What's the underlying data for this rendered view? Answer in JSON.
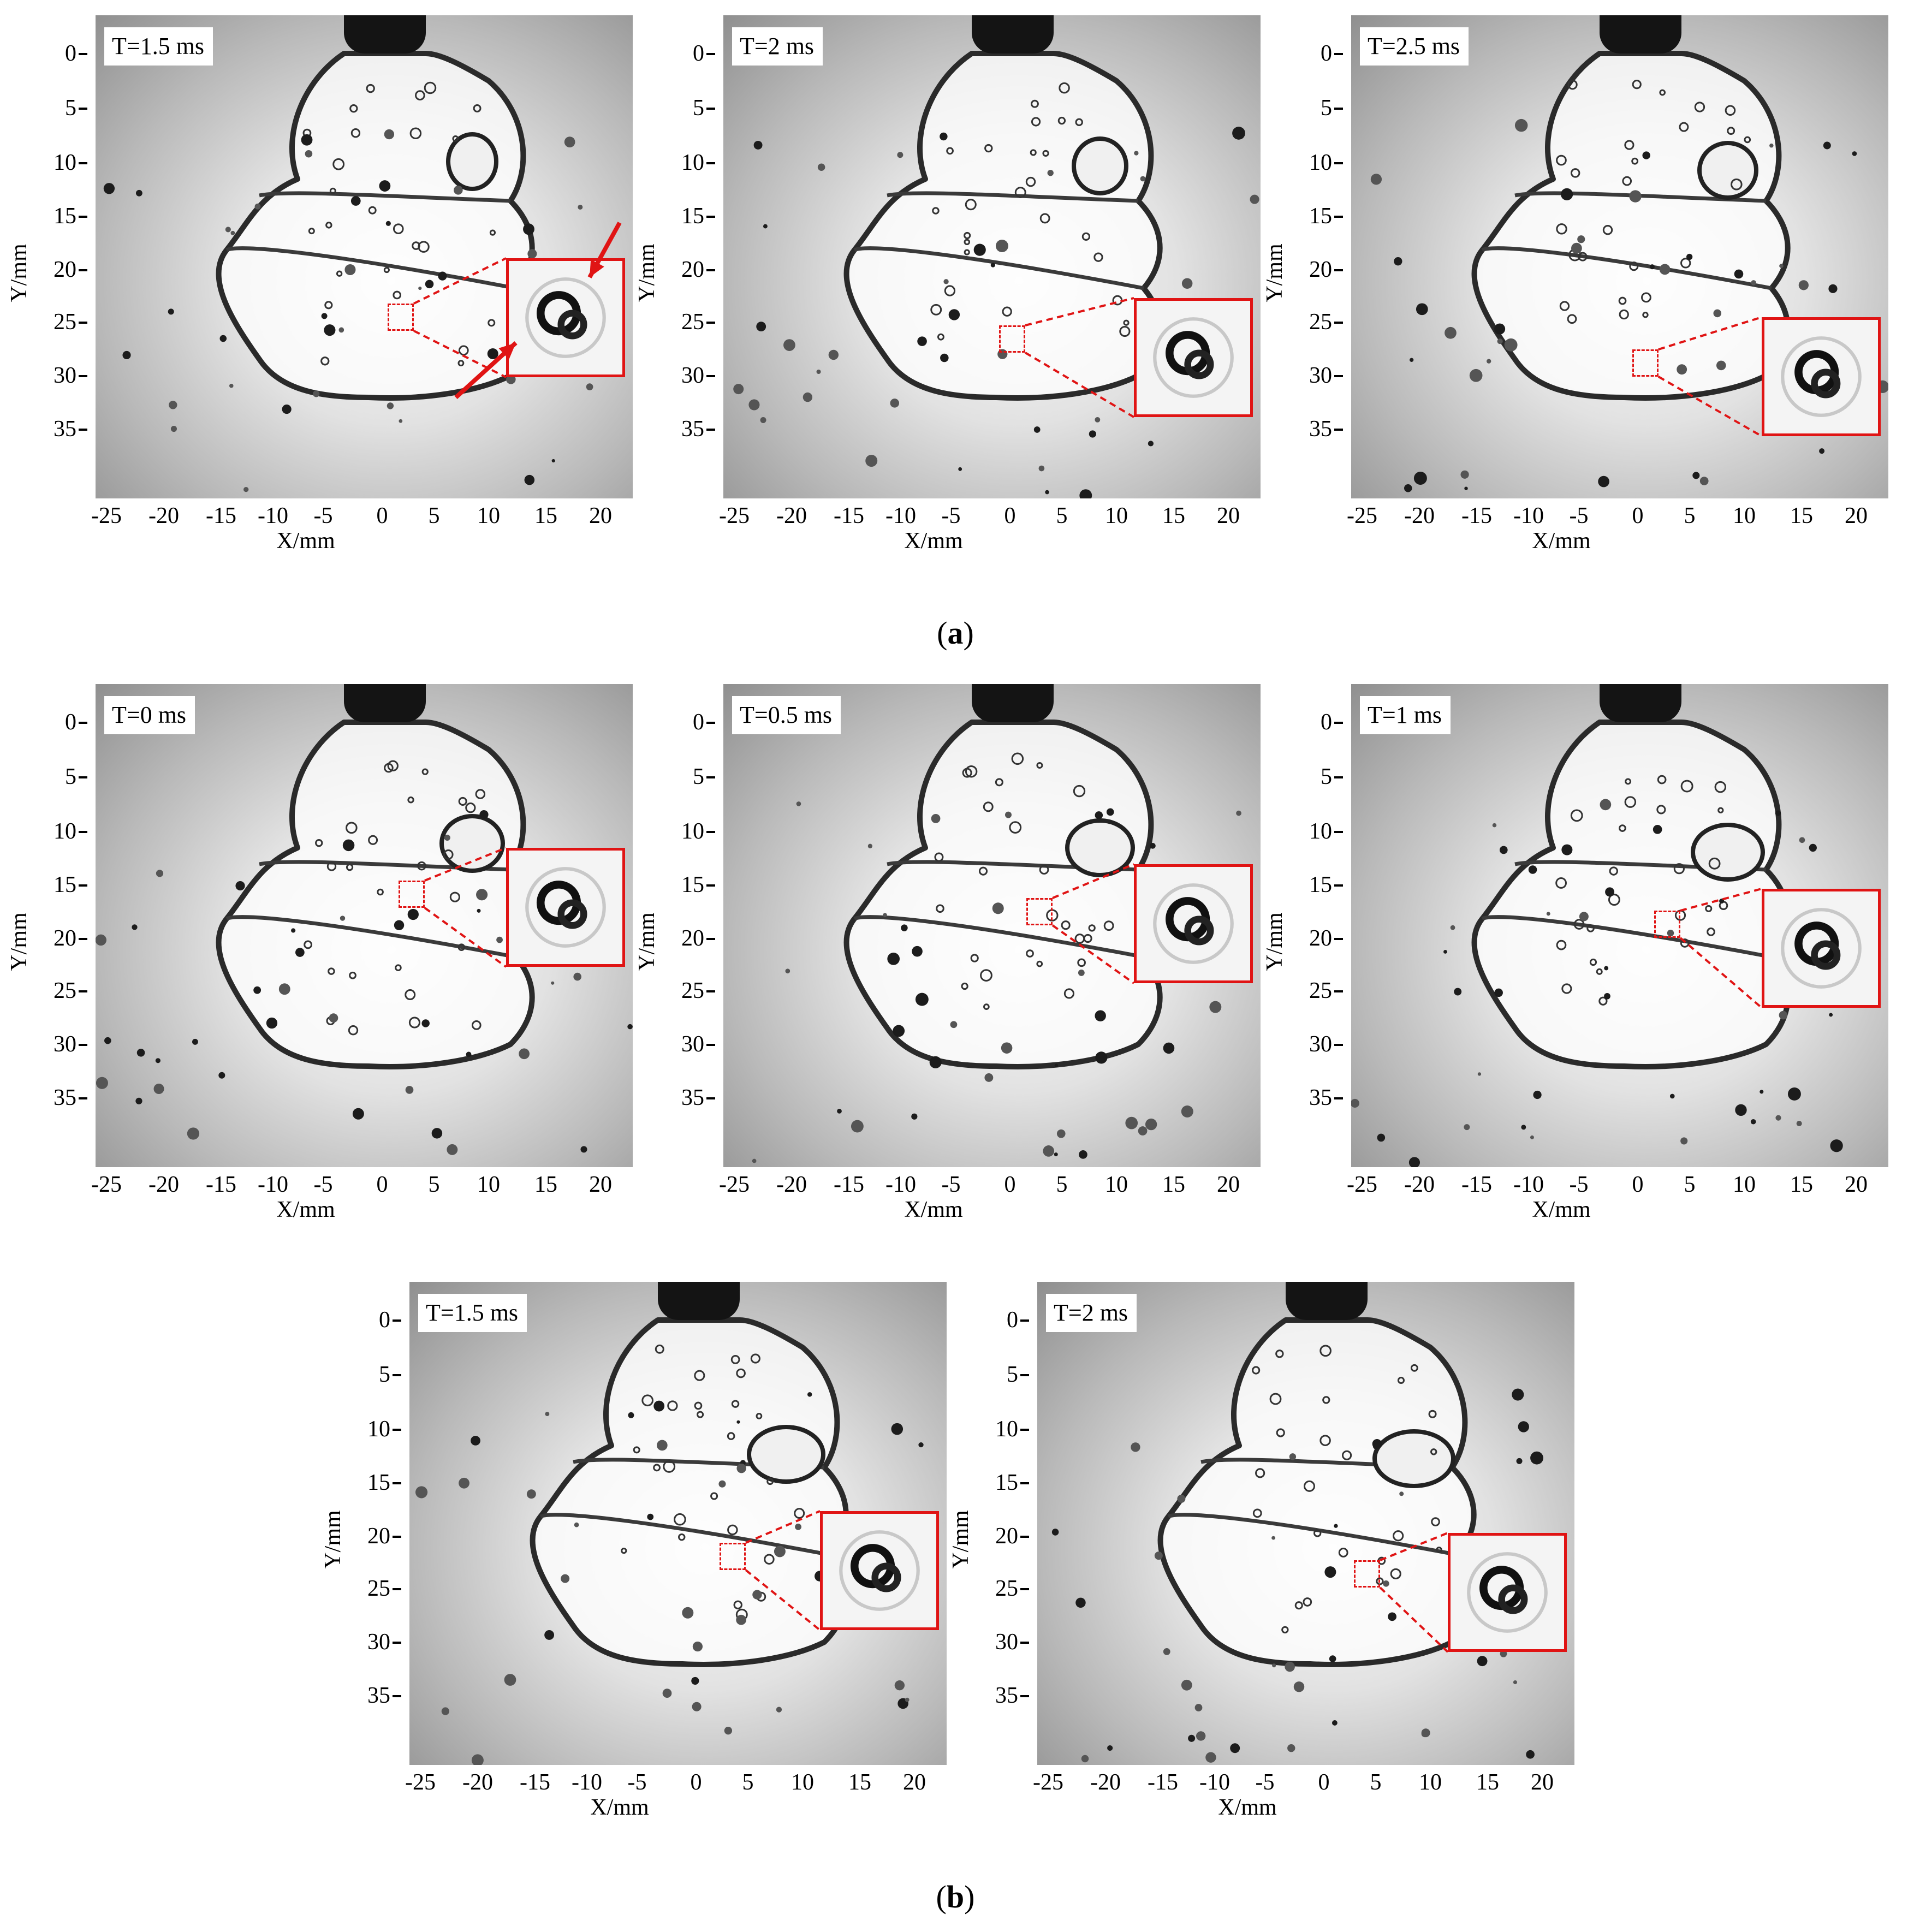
{
  "figure": {
    "caption_a": "a",
    "caption_b": "b",
    "axes": {
      "xlabel": "X/mm",
      "ylabel": "Y/mm",
      "x_ticks": [
        "-25",
        "-20",
        "-15",
        "-10",
        "-5",
        "0",
        "5",
        "10",
        "15",
        "20"
      ],
      "y_ticks": [
        "0",
        "5",
        "10",
        "15",
        "20",
        "25",
        "30",
        "35"
      ]
    },
    "panels_a": [
      {
        "time": "T=1.5 ms"
      },
      {
        "time": "T=2 ms"
      },
      {
        "time": "T=2.5 ms"
      }
    ],
    "panels_b": [
      {
        "time": "T=0 ms"
      },
      {
        "time": "T=0.5 ms"
      },
      {
        "time": "T=1 ms"
      },
      {
        "time": "T=1.5 ms"
      },
      {
        "time": "T=2 ms"
      }
    ],
    "colors": {
      "highlight": "#e01414",
      "nozzle": "#141414"
    }
  }
}
